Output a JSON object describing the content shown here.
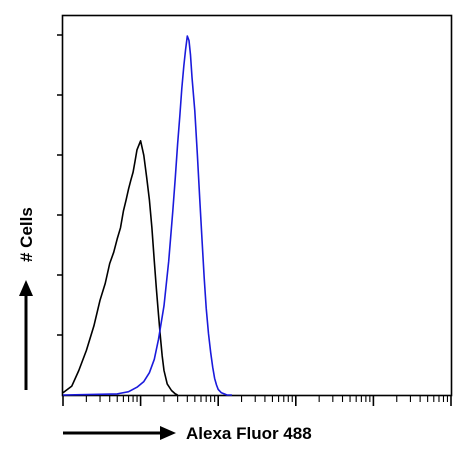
{
  "chart_data": {
    "type": "line",
    "title": "",
    "xlabel": "Alexa Fluor 488",
    "ylabel": "# Cells",
    "x_scale": "log",
    "x_decades": 5,
    "y_ticks": 6,
    "grid": false,
    "legend": "none",
    "series": [
      {
        "color": "#000000",
        "x": [
          1,
          1.3,
          1.6,
          2,
          2.5,
          3,
          3.5,
          4,
          4.5,
          5,
          5.5,
          6,
          6.5,
          7,
          7.5,
          8,
          8.5,
          9,
          10,
          11,
          12,
          13,
          14,
          15,
          16,
          17,
          18,
          19,
          20,
          22,
          25,
          28,
          30
        ],
        "y": [
          2,
          8,
          22,
          40,
          62,
          85,
          100,
          118,
          128,
          140,
          150,
          165,
          175,
          185,
          193,
          200,
          210,
          220,
          228,
          215,
          195,
          175,
          150,
          120,
          95,
          72,
          52,
          35,
          22,
          10,
          4,
          1,
          0
        ]
      },
      {
        "color": "#1a1adc",
        "x": [
          1,
          5,
          7,
          9,
          11,
          13,
          15,
          17,
          20,
          23,
          26,
          28,
          30,
          32,
          34,
          36,
          38,
          40,
          42,
          44,
          46,
          50,
          54,
          58,
          62,
          66,
          70,
          75,
          80,
          85,
          90,
          95,
          100,
          110,
          120,
          130,
          140,
          150
        ],
        "y": [
          0,
          1,
          3,
          7,
          12,
          20,
          32,
          50,
          80,
          120,
          165,
          195,
          225,
          250,
          275,
          295,
          310,
          322,
          318,
          305,
          285,
          255,
          215,
          175,
          138,
          105,
          78,
          55,
          38,
          25,
          15,
          9,
          5,
          2,
          1,
          0,
          0,
          0
        ]
      }
    ]
  }
}
